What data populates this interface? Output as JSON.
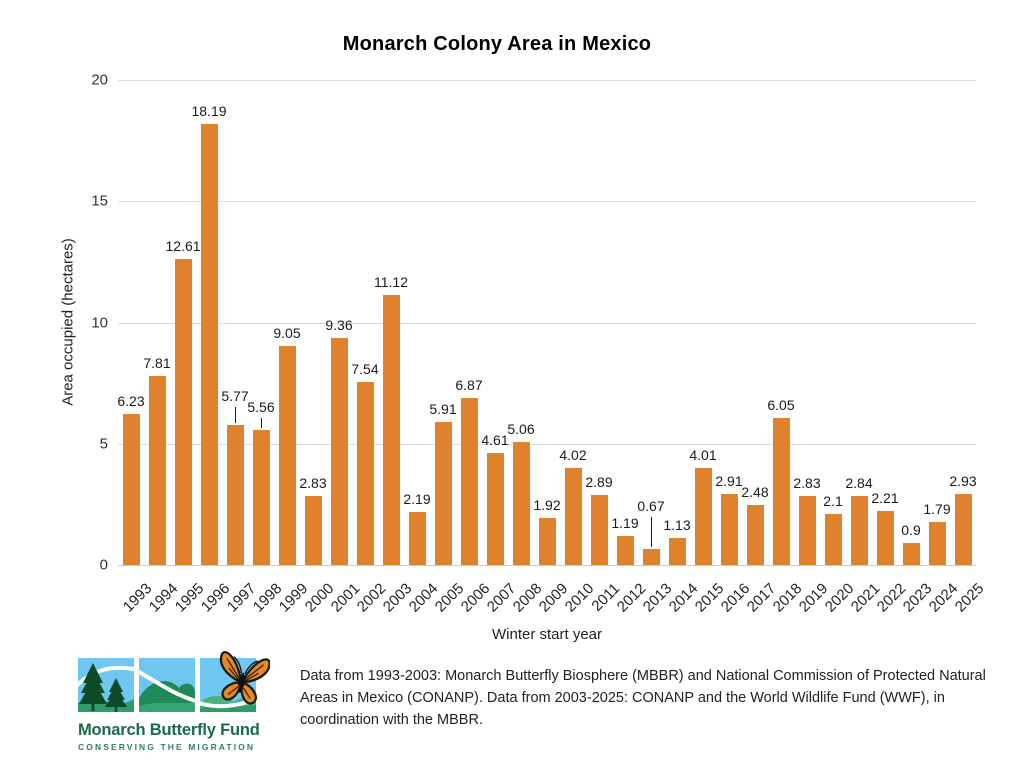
{
  "chart_data": {
    "type": "bar",
    "title": "Monarch Colony Area in Mexico",
    "xlabel": "Winter start year",
    "ylabel": "Area occupied (hectares)",
    "ylim": [
      0,
      20
    ],
    "yticks": [
      0,
      5,
      10,
      15,
      20
    ],
    "grid": true,
    "legend": "none",
    "bar_color": "#e0812d",
    "categories": [
      "1993",
      "1994",
      "1995",
      "1996",
      "1997",
      "1998",
      "1999",
      "2000",
      "2001",
      "2002",
      "2003",
      "2004",
      "2005",
      "2006",
      "2007",
      "2008",
      "2009",
      "2010",
      "2011",
      "2012",
      "2013",
      "2014",
      "2015",
      "2016",
      "2017",
      "2018",
      "2019",
      "2020",
      "2021",
      "2022",
      "2023",
      "2024",
      "2025"
    ],
    "values": [
      6.23,
      7.81,
      12.61,
      18.19,
      5.77,
      5.56,
      9.05,
      2.83,
      9.36,
      7.54,
      11.12,
      2.19,
      5.91,
      6.87,
      4.61,
      5.06,
      1.92,
      4.02,
      2.89,
      1.19,
      0.67,
      1.13,
      4.01,
      2.91,
      2.48,
      6.05,
      2.83,
      2.1,
      2.84,
      2.21,
      0.9,
      1.79,
      2.93
    ],
    "label_lifts": {
      "1997": 16,
      "1998": 10,
      "2013": 30
    }
  },
  "footer": {
    "caption": "Data from 1993-2003: Monarch Butterfly Biosphere (MBBR) and National Commission of Protected Natural Areas in Mexico (CONANP). Data from 2003-2025: CONANP and the World Wildlife Fund (WWF), in coordination with the MBBR.",
    "logo": {
      "name": "Monarch Butterfly Fund",
      "tagline": "CONSERVING THE MIGRATION"
    }
  },
  "colors": {
    "bar": "#e0812d",
    "grid": "#dcdcdc",
    "baseline": "#c9c9c9",
    "value_label": "#1a1a1a",
    "tick_label": "#333333",
    "logo_green_dark": "#1d6a4a",
    "logo_green_mid": "#2e9c66",
    "logo_pine": "#0c4a2a",
    "logo_sky": "#6fc7f1",
    "butterfly_orange": "#e8871e"
  },
  "icons": {
    "logo": "monarch-butterfly-fund-logo",
    "butterfly": "monarch-butterfly-icon"
  }
}
